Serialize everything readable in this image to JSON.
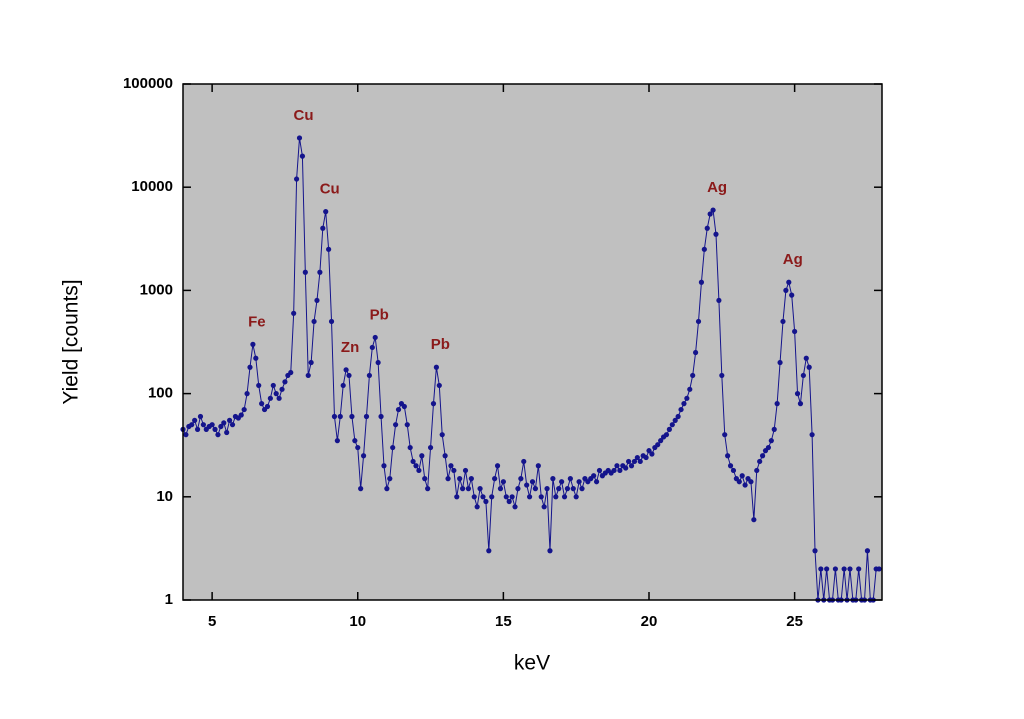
{
  "chart_data": {
    "type": "scatter-line",
    "x_label": "keV",
    "y_label": "Yield [counts]",
    "yscale": "log",
    "xlim": [
      4,
      28
    ],
    "ylim": [
      1,
      100000
    ],
    "xticks": [
      5,
      10,
      15,
      20,
      25
    ],
    "yticks": [
      1,
      10,
      100,
      1000,
      10000,
      100000
    ],
    "background": "#c0c0c0",
    "color": "#14148c",
    "x": [
      4.0,
      4.1,
      4.2,
      4.3,
      4.4,
      4.5,
      4.6,
      4.7,
      4.8,
      4.9,
      5.0,
      5.1,
      5.2,
      5.3,
      5.4,
      5.5,
      5.6,
      5.7,
      5.8,
      5.9,
      6.0,
      6.1,
      6.2,
      6.3,
      6.4,
      6.5,
      6.6,
      6.7,
      6.8,
      6.9,
      7.0,
      7.1,
      7.2,
      7.3,
      7.4,
      7.5,
      7.6,
      7.7,
      7.8,
      7.9,
      8.0,
      8.1,
      8.2,
      8.3,
      8.4,
      8.5,
      8.6,
      8.7,
      8.8,
      8.9,
      9.0,
      9.1,
      9.2,
      9.3,
      9.4,
      9.5,
      9.6,
      9.7,
      9.8,
      9.9,
      10.0,
      10.1,
      10.2,
      10.3,
      10.4,
      10.5,
      10.6,
      10.7,
      10.8,
      10.9,
      11.0,
      11.1,
      11.2,
      11.3,
      11.4,
      11.5,
      11.6,
      11.7,
      11.8,
      11.9,
      12.0,
      12.1,
      12.2,
      12.3,
      12.4,
      12.5,
      12.6,
      12.7,
      12.8,
      12.9,
      13.0,
      13.1,
      13.2,
      13.3,
      13.4,
      13.5,
      13.6,
      13.7,
      13.8,
      13.9,
      14.0,
      14.1,
      14.2,
      14.3,
      14.4,
      14.5,
      14.6,
      14.7,
      14.8,
      14.9,
      15.0,
      15.1,
      15.2,
      15.3,
      15.4,
      15.5,
      15.6,
      15.7,
      15.8,
      15.9,
      16.0,
      16.1,
      16.2,
      16.3,
      16.4,
      16.5,
      16.6,
      16.7,
      16.8,
      16.9,
      17.0,
      17.1,
      17.2,
      17.3,
      17.4,
      17.5,
      17.6,
      17.7,
      17.8,
      17.9,
      18.0,
      18.1,
      18.2,
      18.3,
      18.4,
      18.5,
      18.6,
      18.7,
      18.8,
      18.9,
      19.0,
      19.1,
      19.2,
      19.3,
      19.4,
      19.5,
      19.6,
      19.7,
      19.8,
      19.9,
      20.0,
      20.1,
      20.2,
      20.3,
      20.4,
      20.5,
      20.6,
      20.7,
      20.8,
      20.9,
      21.0,
      21.1,
      21.2,
      21.3,
      21.4,
      21.5,
      21.6,
      21.7,
      21.8,
      21.9,
      22.0,
      22.1,
      22.2,
      22.3,
      22.4,
      22.5,
      22.6,
      22.7,
      22.8,
      22.9,
      23.0,
      23.1,
      23.2,
      23.3,
      23.4,
      23.5,
      23.6,
      23.7,
      23.8,
      23.9,
      24.0,
      24.1,
      24.2,
      24.3,
      24.4,
      24.5,
      24.6,
      24.7,
      24.8,
      24.9,
      25.0,
      25.1,
      25.2,
      25.3,
      25.4,
      25.5,
      25.6,
      25.7,
      25.8,
      25.9,
      26.0,
      26.1,
      26.2,
      26.3,
      26.4,
      26.5,
      26.6,
      26.7,
      26.8,
      26.9,
      27.0,
      27.1,
      27.2,
      27.3,
      27.4,
      27.5,
      27.6,
      27.7,
      27.8,
      27.9
    ],
    "values": [
      45,
      40,
      48,
      50,
      55,
      45,
      60,
      50,
      45,
      48,
      50,
      45,
      40,
      48,
      52,
      42,
      55,
      50,
      60,
      58,
      62,
      70,
      100,
      180,
      300,
      220,
      120,
      80,
      70,
      75,
      90,
      120,
      100,
      90,
      110,
      130,
      150,
      160,
      600,
      12000,
      30000,
      20000,
      1500,
      150,
      200,
      500,
      800,
      1500,
      4000,
      5800,
      2500,
      500,
      60,
      35,
      60,
      120,
      170,
      150,
      60,
      35,
      30,
      12,
      25,
      60,
      150,
      280,
      350,
      200,
      60,
      20,
      12,
      15,
      30,
      50,
      70,
      80,
      75,
      50,
      30,
      22,
      20,
      18,
      25,
      15,
      12,
      30,
      80,
      180,
      120,
      40,
      25,
      15,
      20,
      18,
      10,
      15,
      12,
      18,
      12,
      15,
      10,
      8,
      12,
      10,
      9,
      3,
      10,
      15,
      20,
      12,
      14,
      10,
      9,
      10,
      8,
      12,
      15,
      22,
      13,
      10,
      14,
      12,
      20,
      10,
      8,
      12,
      3,
      15,
      10,
      12,
      14,
      10,
      12,
      15,
      12,
      10,
      14,
      12,
      15,
      14,
      15,
      16,
      14,
      18,
      16,
      17,
      18,
      17,
      18,
      20,
      18,
      20,
      19,
      22,
      20,
      22,
      24,
      22,
      25,
      24,
      28,
      26,
      30,
      32,
      35,
      38,
      40,
      45,
      50,
      55,
      60,
      70,
      80,
      90,
      110,
      150,
      250,
      500,
      1200,
      2500,
      4000,
      5500,
      6000,
      3500,
      800,
      150,
      40,
      25,
      20,
      18,
      15,
      14,
      16,
      13,
      15,
      14,
      6,
      18,
      22,
      25,
      28,
      30,
      35,
      45,
      80,
      200,
      500,
      1000,
      1200,
      900,
      400,
      100,
      80,
      150,
      220,
      180,
      40,
      3,
      1,
      2,
      1,
      2,
      1,
      1,
      2,
      1,
      1,
      2,
      1,
      2,
      1,
      1,
      2,
      1,
      1,
      3,
      1,
      1,
      2,
      2
    ],
    "annotations": [
      {
        "text": "Fe",
        "x": 6.4,
        "y": 300
      },
      {
        "text": "Cu",
        "x": 8.0,
        "y": 30000
      },
      {
        "text": "Cu",
        "x": 8.9,
        "y": 5800
      },
      {
        "text": "Zn",
        "x": 9.6,
        "y": 170
      },
      {
        "text": "Pb",
        "x": 10.6,
        "y": 350
      },
      {
        "text": "Pb",
        "x": 12.7,
        "y": 180
      },
      {
        "text": "Ag",
        "x": 22.2,
        "y": 6000
      },
      {
        "text": "Ag",
        "x": 24.8,
        "y": 1200
      }
    ]
  }
}
